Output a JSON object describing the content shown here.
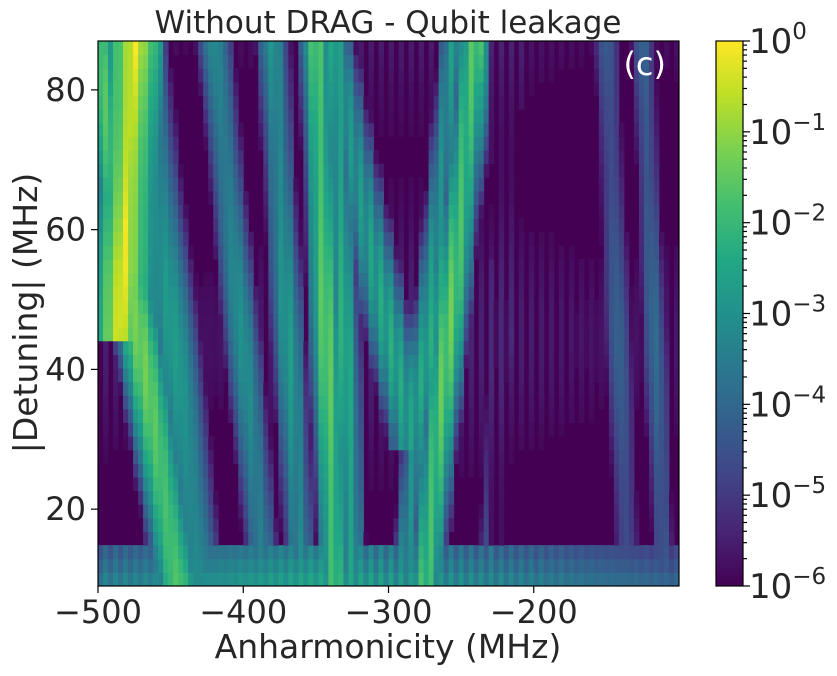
{
  "chart_data": {
    "type": "heatmap",
    "title": "Without DRAG -  Qubit leakage",
    "xlabel": "Anharmonicity (MHz)",
    "ylabel": "|Detuning| (MHz)",
    "panel_label": "(c)",
    "xlim": [
      -500,
      -100
    ],
    "ylim": [
      9,
      87
    ],
    "x_ticks": [
      {
        "value": -500,
        "label": "−500"
      },
      {
        "value": -400,
        "label": "−400"
      },
      {
        "value": -300,
        "label": "−300"
      },
      {
        "value": -200,
        "label": "−200"
      }
    ],
    "y_ticks": [
      {
        "value": 20,
        "label": "20"
      },
      {
        "value": 40,
        "label": "40"
      },
      {
        "value": 60,
        "label": "60"
      },
      {
        "value": 80,
        "label": "80"
      }
    ],
    "colormap": "viridis",
    "color_scale": "log",
    "color_range": [
      1e-06,
      1
    ],
    "colorbar_ticks": [
      {
        "base": "10",
        "exponent": "0"
      },
      {
        "base": "10",
        "exponent": "−1"
      },
      {
        "base": "10",
        "exponent": "−2"
      },
      {
        "base": "10",
        "exponent": "−3"
      },
      {
        "base": "10",
        "exponent": "−4"
      },
      {
        "base": "10",
        "exponent": "−5"
      },
      {
        "base": "10",
        "exponent": "−6"
      }
    ],
    "features": [
      {
        "name": "high-leakage region",
        "x_range": [
          -500,
          -460
        ],
        "y_range": [
          50,
          87
        ],
        "level": 0.7
      },
      {
        "name": "resonance ridge A",
        "x_top": -500,
        "x_bottom": -445,
        "level": 0.05
      },
      {
        "name": "resonance ridge B",
        "x_top": -350,
        "x_bottom": -335,
        "level": 0.05
      },
      {
        "name": "resonance ridge C",
        "x_top": -240,
        "x_bottom": -275,
        "level": 0.05
      },
      {
        "name": "V-shaped dark valley",
        "x_center": -285,
        "y_min": 30,
        "level": 1e-06
      },
      {
        "name": "low detuning bright band",
        "y_range": [
          9,
          14
        ],
        "level": 0.005
      }
    ]
  }
}
